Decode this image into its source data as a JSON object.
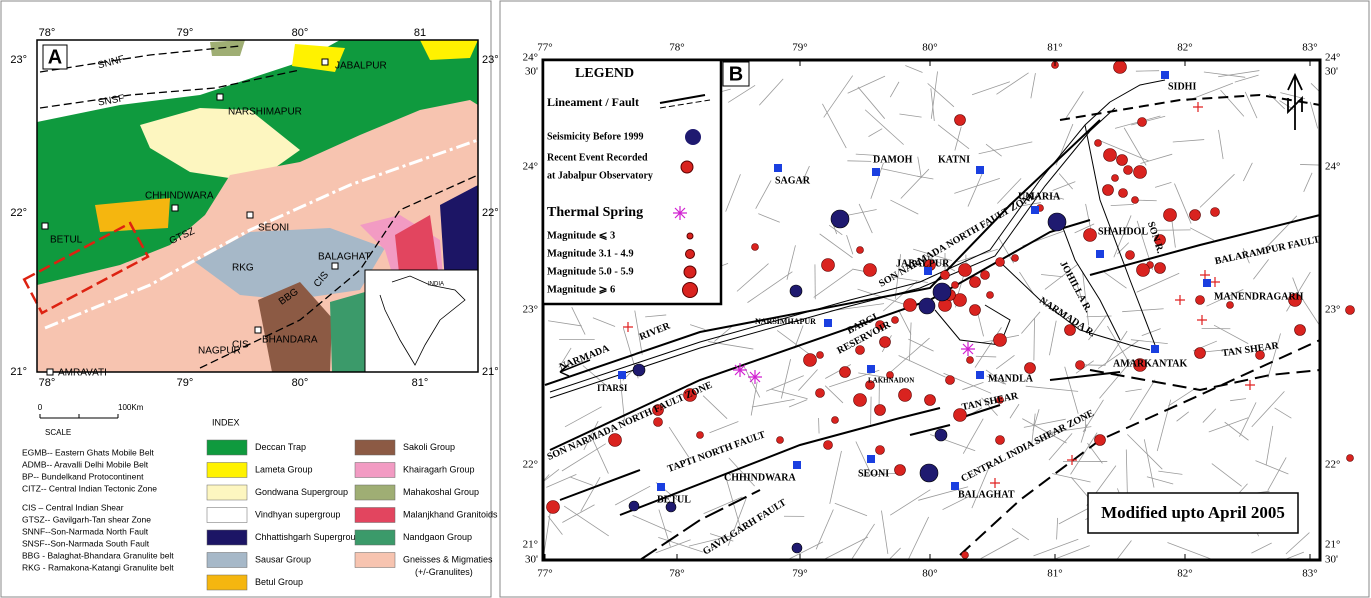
{
  "panel_a": {
    "label": "A",
    "top_ticks": [
      "78°",
      "79°",
      "80°",
      "81"
    ],
    "bottom_ticks": [
      "78°",
      "79°",
      "80°",
      "81°"
    ],
    "left_ticks": [
      "23°",
      "22°",
      "21°"
    ],
    "right_ticks": [
      "23°",
      "22°",
      "21°"
    ],
    "places": [
      "SNNF",
      "SNSF",
      "JABALPUR",
      "NARSHIMAPUR",
      "CHHINDWARA",
      "BETUL",
      "SEONI",
      "GTSZ",
      "RKG",
      "BALAGHAT",
      "BBG",
      "CIS",
      "CIS",
      "NAGPUR",
      "BHANDARA",
      "AMRAVATI"
    ],
    "inset_label": "INDIA",
    "scale": {
      "start": "0",
      "end": "100Km",
      "title": "SCALE"
    },
    "abbreviations": [
      "EGMB-- Eastern Ghats Mobile Belt",
      "ADMB-- Aravalli Delhi Mobile Belt",
      "BP-- Bundelkand Protocontinent",
      "CITZ-- Central Indian Tectonic Zone",
      "CIS – Central Indian Shear",
      "GTSZ-- Gavilgarh-Tan shear Zone",
      "SNNF--Son-Narmada North Fault",
      "SNSF--Son-Narmada South Fault",
      "BBG - Balaghat-Bhandara Granulite belt",
      "RKG - Ramakona-Katangi Granulite belt"
    ],
    "index": {
      "title": "INDEX",
      "items": [
        {
          "label": "Deccan Trap",
          "color": "#0f9a3e"
        },
        {
          "label": "Lameta Group",
          "color": "#fff200"
        },
        {
          "label": "Gondwana Supergroup",
          "color": "#fdf6c0"
        },
        {
          "label": "Vindhyan supergroup",
          "color": "#ffffff"
        },
        {
          "label": "Chhattishgarh Supergroup",
          "color": "#1c1565"
        },
        {
          "label": "Sausar Group",
          "color": "#a6b8c8"
        },
        {
          "label": "Betul Group",
          "color": "#f5b60f"
        },
        {
          "label": "Sakoli Group",
          "color": "#8c5a44"
        },
        {
          "label": "Khairagarh Group",
          "color": "#f29bc3"
        },
        {
          "label": "Mahakoshal Group",
          "color": "#9fae74"
        },
        {
          "label": "Malanjkhand Granitoids",
          "color": "#e2455f"
        },
        {
          "label": "Nandgaon Group",
          "color": "#3b9a6a"
        },
        {
          "label": "Gneisses & Migmaties",
          "note": "(+/-Granulites)",
          "color": "#f7c4b0"
        }
      ]
    }
  },
  "panel_b": {
    "label": "B",
    "top_ticks": [
      "77°",
      "78°",
      "79°",
      "80°",
      "81°",
      "82°",
      "83°"
    ],
    "bottom_ticks": [
      "77°",
      "78°",
      "79°",
      "80°",
      "81°",
      "82°",
      "83°"
    ],
    "left_ticks": [
      "24°",
      "23°",
      "22°"
    ],
    "right_ticks": [
      "24°",
      "23°",
      "22°"
    ],
    "corners": [
      {
        "deg": "24°",
        "min": "30'"
      },
      {
        "deg": "21°",
        "min": "30'"
      }
    ],
    "legend": {
      "title": "LEGEND",
      "items": [
        "Lineament / Fault",
        "Seismicity Before 1999",
        "Recent Event Recorded",
        "at Jabalpur Observatory",
        "Thermal Spring",
        "Magnitude ⩽ 3",
        "Magnitude 3.1 - 4.9",
        "Magnitude 5.0 - 5.9",
        "Magnitude ⩾ 6"
      ]
    },
    "places": [
      "SIDHI",
      "KATNI",
      "DAMOH",
      "SAGAR",
      "UMARIA",
      "SHAHDOL",
      "JABALPUR",
      "MANENDRAGARH",
      "NARSIMHAPUR",
      "AMARKANTAK",
      "ITARSI",
      "LAKHNADON",
      "MANDLA",
      "SEONI",
      "CHHINDWARA",
      "BETUL",
      "BALAGHAT"
    ],
    "features": [
      "SON NARMADA NORTH FAULT ZONE",
      "BALARAMPUR FAULT",
      "JOHILLA R.",
      "SON R.",
      "NARMADA R.",
      "NARMADA",
      "RIVER",
      "BARGI",
      "RESERVOIR",
      "SON NARMADA NORTH FAULT ZONE",
      "TAN SHEAR",
      "TAN SHEAR",
      "TAPTI NORTH FAULT",
      "CENTRAL INDIA SHEAR ZONE",
      "GAVILGARH FAULT"
    ],
    "caption": "Modified upto April 2005"
  }
}
